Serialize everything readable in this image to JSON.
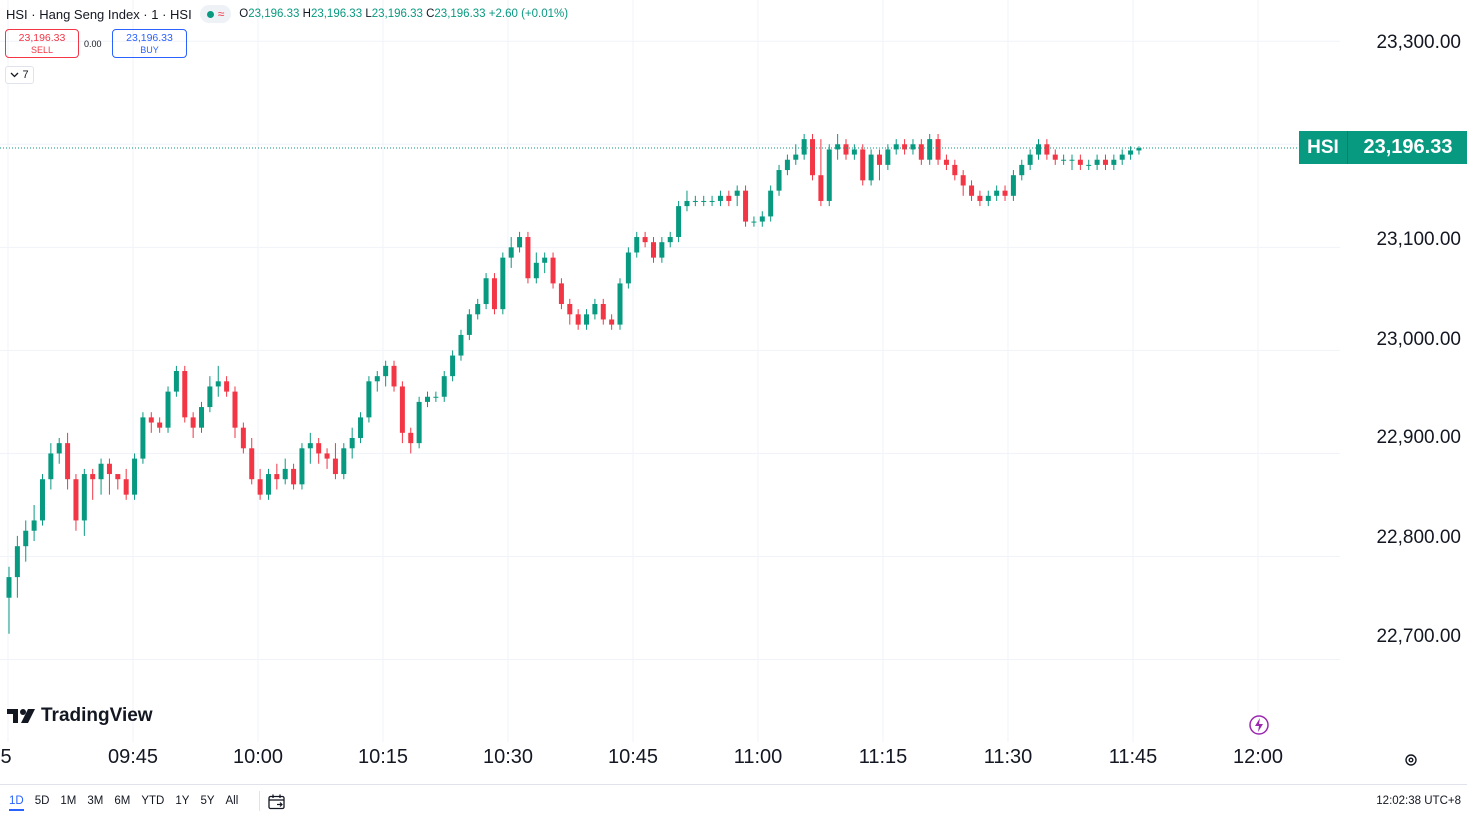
{
  "legend": {
    "title": "HSI · Hang Seng Index · 1 · HSI",
    "ohlc": [
      {
        "k": "O",
        "v": "23,196.33"
      },
      {
        "k": "H",
        "v": "23,196.33"
      },
      {
        "k": "L",
        "v": "23,196.33"
      },
      {
        "k": "C",
        "v": "23,196.33"
      }
    ],
    "change": "+2.60 (+0.01%)"
  },
  "trade": {
    "sell_price": "23,196.33",
    "sell_label": "SELL",
    "spread": "0.00",
    "buy_price": "23,196.33",
    "buy_label": "BUY",
    "indicators_count": "7"
  },
  "price_axis": {
    "labels": [
      "23,300.00",
      "23,100.00",
      "23,000.00",
      "22,900.00",
      "22,800.00",
      "22,700.00"
    ]
  },
  "last_price_tag": {
    "symbol": "HSI",
    "price": "23,196.33"
  },
  "time_axis": {
    "labels": [
      "5",
      "09:45",
      "10:00",
      "10:15",
      "10:30",
      "10:45",
      "11:00",
      "11:15",
      "11:30",
      "11:45",
      "12:00"
    ]
  },
  "brand": {
    "name": "TradingView"
  },
  "bottom_bar": {
    "ranges": [
      "1D",
      "5D",
      "1M",
      "3M",
      "6M",
      "YTD",
      "1Y",
      "5Y",
      "All"
    ],
    "active_range": "1D",
    "clock": "12:02:38 UTC+8"
  },
  "icons": [
    "calendar-range-icon",
    "settings-icon",
    "bolt-icon",
    "chevron-down-icon",
    "market-status-dot-icon"
  ],
  "colors": {
    "up": "#089981",
    "down": "#f23645",
    "accent": "#2962ff"
  },
  "chart_data": {
    "type": "candlestick",
    "symbol": "HSI",
    "interval": "1",
    "ylim": [
      22620,
      23340
    ],
    "last_price": 23196.33,
    "candles": [
      [
        22760,
        22780,
        22725,
        22790
      ],
      [
        22780,
        22810,
        22760,
        22820
      ],
      [
        22810,
        22825,
        22795,
        22835
      ],
      [
        22825,
        22835,
        22815,
        22850
      ],
      [
        22835,
        22875,
        22830,
        22880
      ],
      [
        22875,
        22900,
        22865,
        22910
      ],
      [
        22900,
        22910,
        22890,
        22915
      ],
      [
        22910,
        22875,
        22865,
        22920
      ],
      [
        22875,
        22835,
        22825,
        22880
      ],
      [
        22835,
        22880,
        22820,
        22885
      ],
      [
        22880,
        22875,
        22855,
        22885
      ],
      [
        22875,
        22890,
        22860,
        22895
      ],
      [
        22890,
        22880,
        22860,
        22895
      ],
      [
        22880,
        22875,
        22865,
        22880
      ],
      [
        22875,
        22860,
        22855,
        22885
      ],
      [
        22860,
        22895,
        22855,
        22900
      ],
      [
        22895,
        22935,
        22890,
        22940
      ],
      [
        22935,
        22930,
        22920,
        22940
      ],
      [
        22930,
        22925,
        22920,
        22935
      ],
      [
        22925,
        22960,
        22920,
        22965
      ],
      [
        22960,
        22980,
        22955,
        22985
      ],
      [
        22980,
        22935,
        22930,
        22985
      ],
      [
        22935,
        22925,
        22915,
        22940
      ],
      [
        22925,
        22945,
        22920,
        22950
      ],
      [
        22945,
        22965,
        22940,
        22975
      ],
      [
        22965,
        22970,
        22955,
        22985
      ],
      [
        22970,
        22960,
        22955,
        22975
      ],
      [
        22960,
        22925,
        22915,
        22965
      ],
      [
        22925,
        22905,
        22900,
        22930
      ],
      [
        22905,
        22875,
        22870,
        22915
      ],
      [
        22875,
        22860,
        22855,
        22885
      ],
      [
        22860,
        22880,
        22855,
        22885
      ],
      [
        22880,
        22875,
        22865,
        22890
      ],
      [
        22875,
        22885,
        22870,
        22895
      ],
      [
        22885,
        22870,
        22865,
        22890
      ],
      [
        22870,
        22905,
        22865,
        22910
      ],
      [
        22905,
        22910,
        22890,
        22920
      ],
      [
        22910,
        22900,
        22890,
        22915
      ],
      [
        22900,
        22895,
        22885,
        22905
      ],
      [
        22895,
        22880,
        22875,
        22910
      ],
      [
        22880,
        22905,
        22875,
        22910
      ],
      [
        22905,
        22915,
        22895,
        22925
      ],
      [
        22915,
        22935,
        22910,
        22940
      ],
      [
        22935,
        22970,
        22930,
        22975
      ],
      [
        22970,
        22975,
        22960,
        22980
      ],
      [
        22975,
        22985,
        22965,
        22990
      ],
      [
        22985,
        22965,
        22960,
        22990
      ],
      [
        22965,
        22920,
        22910,
        22970
      ],
      [
        22920,
        22910,
        22900,
        22925
      ],
      [
        22910,
        22950,
        22905,
        22955
      ],
      [
        22950,
        22955,
        22945,
        22960
      ],
      [
        22955,
        22955,
        22950,
        22960
      ],
      [
        22955,
        22975,
        22950,
        22980
      ],
      [
        22975,
        22995,
        22970,
        23000
      ],
      [
        22995,
        23015,
        22990,
        23020
      ],
      [
        23015,
        23035,
        23010,
        23040
      ],
      [
        23035,
        23045,
        23030,
        23050
      ],
      [
        23045,
        23070,
        23040,
        23075
      ],
      [
        23070,
        23040,
        23035,
        23075
      ],
      [
        23040,
        23090,
        23035,
        23095
      ],
      [
        23090,
        23100,
        23080,
        23110
      ],
      [
        23100,
        23110,
        23095,
        23115
      ],
      [
        23110,
        23070,
        23065,
        23115
      ],
      [
        23070,
        23085,
        23065,
        23095
      ],
      [
        23085,
        23090,
        23075,
        23095
      ],
      [
        23090,
        23065,
        23060,
        23095
      ],
      [
        23065,
        23045,
        23040,
        23070
      ],
      [
        23045,
        23035,
        23025,
        23050
      ],
      [
        23035,
        23025,
        23020,
        23040
      ],
      [
        23025,
        23035,
        23020,
        23040
      ],
      [
        23035,
        23045,
        23030,
        23050
      ],
      [
        23045,
        23030,
        23025,
        23050
      ],
      [
        23030,
        23025,
        23020,
        23035
      ],
      [
        23025,
        23065,
        23020,
        23070
      ],
      [
        23065,
        23095,
        23060,
        23100
      ],
      [
        23095,
        23110,
        23090,
        23115
      ],
      [
        23110,
        23105,
        23100,
        23115
      ],
      [
        23105,
        23090,
        23085,
        23110
      ],
      [
        23090,
        23105,
        23085,
        23110
      ],
      [
        23105,
        23110,
        23100,
        23115
      ],
      [
        23110,
        23140,
        23105,
        23145
      ],
      [
        23140,
        23145,
        23135,
        23155
      ],
      [
        23145,
        23145,
        23140,
        23150
      ],
      [
        23145,
        23145,
        23140,
        23150
      ],
      [
        23145,
        23145,
        23140,
        23150
      ],
      [
        23145,
        23150,
        23140,
        23155
      ],
      [
        23150,
        23145,
        23140,
        23155
      ],
      [
        23150,
        23155,
        23140,
        23160
      ],
      [
        23155,
        23125,
        23120,
        23160
      ],
      [
        23125,
        23125,
        23120,
        23130
      ],
      [
        23125,
        23130,
        23120,
        23135
      ],
      [
        23130,
        23155,
        23125,
        23160
      ],
      [
        23155,
        23175,
        23150,
        23180
      ],
      [
        23175,
        23185,
        23170,
        23190
      ],
      [
        23185,
        23190,
        23180,
        23200
      ],
      [
        23190,
        23205,
        23185,
        23210
      ],
      [
        23205,
        23170,
        23165,
        23210
      ],
      [
        23170,
        23145,
        23140,
        23205
      ],
      [
        23145,
        23195,
        23140,
        23200
      ],
      [
        23195,
        23200,
        23185,
        23210
      ],
      [
        23200,
        23190,
        23185,
        23205
      ],
      [
        23190,
        23195,
        23185,
        23200
      ],
      [
        23195,
        23165,
        23160,
        23200
      ],
      [
        23165,
        23190,
        23160,
        23195
      ],
      [
        23190,
        23180,
        23165,
        23195
      ],
      [
        23180,
        23195,
        23175,
        23200
      ],
      [
        23195,
        23200,
        23190,
        23205
      ],
      [
        23200,
        23195,
        23190,
        23205
      ],
      [
        23195,
        23200,
        23190,
        23205
      ],
      [
        23200,
        23185,
        23180,
        23205
      ],
      [
        23185,
        23205,
        23180,
        23210
      ],
      [
        23205,
        23185,
        23180,
        23210
      ],
      [
        23185,
        23180,
        23175,
        23190
      ],
      [
        23180,
        23170,
        23165,
        23185
      ],
      [
        23170,
        23160,
        23150,
        23175
      ],
      [
        23160,
        23150,
        23145,
        23165
      ],
      [
        23150,
        23145,
        23140,
        23155
      ],
      [
        23145,
        23150,
        23140,
        23155
      ],
      [
        23150,
        23155,
        23145,
        23160
      ],
      [
        23155,
        23150,
        23145,
        23160
      ],
      [
        23150,
        23170,
        23145,
        23175
      ],
      [
        23170,
        23180,
        23165,
        23185
      ],
      [
        23180,
        23190,
        23175,
        23195
      ],
      [
        23190,
        23200,
        23185,
        23205
      ],
      [
        23200,
        23190,
        23185,
        23205
      ],
      [
        23190,
        23185,
        23180,
        23195
      ],
      [
        23185,
        23185,
        23180,
        23190
      ],
      [
        23185,
        23185,
        23175,
        23190
      ],
      [
        23185,
        23180,
        23175,
        23190
      ],
      [
        23180,
        23180,
        23175,
        23185
      ],
      [
        23180,
        23185,
        23175,
        23190
      ],
      [
        23185,
        23180,
        23175,
        23190
      ],
      [
        23180,
        23185,
        23175,
        23190
      ],
      [
        23185,
        23190,
        23180,
        23195
      ],
      [
        23190,
        23194,
        23185,
        23198
      ],
      [
        23194,
        23196.33,
        23190,
        23198
      ]
    ]
  }
}
